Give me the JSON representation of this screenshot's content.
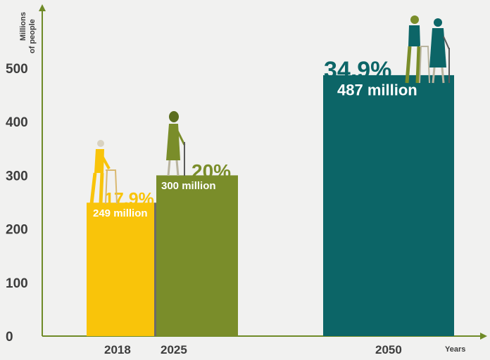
{
  "chart_data": {
    "type": "bar",
    "ylabel_line1": "Millions",
    "ylabel_line2": "of people",
    "xlabel": "Years",
    "ylim": [
      0,
      500
    ],
    "yticks": [
      0,
      100,
      200,
      300,
      400,
      500
    ],
    "categories": [
      "2018",
      "2025",
      "2050"
    ],
    "values": [
      249,
      300,
      487
    ],
    "percent_labels": [
      "17,9%",
      "20%",
      "34,9%"
    ],
    "value_labels": [
      "249 million",
      "300 million",
      "487 million"
    ],
    "grid": false,
    "legend": "none"
  },
  "colors": {
    "background": "#f1f1f0",
    "axis": "#6f8a27",
    "bar_2018": "#f9c40a",
    "bar_2018_edge": "#6a6a6a",
    "bar_2025": "#7a8d2a",
    "bar_2050": "#0c6567",
    "text": "#3d3d3d"
  },
  "icons": [
    "elderly-man-with-walker-icon",
    "elderly-woman-with-cane-icon",
    "elderly-couple-icon"
  ]
}
